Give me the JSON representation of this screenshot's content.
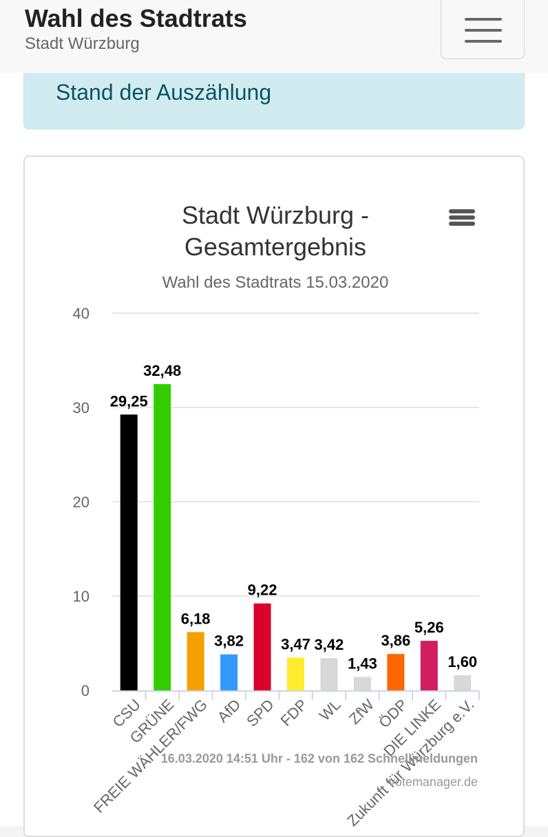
{
  "header": {
    "title": "Wahl des Stadtrats",
    "subtitle": "Stadt Würzburg",
    "menu_icon": "hamburger-icon"
  },
  "alert": {
    "text": "Stand der Auszählung"
  },
  "chart_menu_icon": "hamburger-icon",
  "chart_data": {
    "type": "bar",
    "title_lines": [
      "Stadt Würzburg -",
      "Gesamtergebnis"
    ],
    "subtitle": "Wahl des Stadtrats 15.03.2020",
    "categories": [
      "CSU",
      "GRÜNE",
      "FREIE WÄHLER/FWG",
      "AfD",
      "SPD",
      "FDP",
      "WL",
      "ZfW",
      "ÖDP",
      "DIE LINKE",
      "Zukunft für Würzburg e.V."
    ],
    "values": [
      29.25,
      32.48,
      6.18,
      3.82,
      9.22,
      3.47,
      3.42,
      1.43,
      3.86,
      5.26,
      1.6
    ],
    "value_labels": [
      "29,25",
      "32,48",
      "6,18",
      "3,82",
      "9,22",
      "3,47",
      "3,42",
      "1,43",
      "3,86",
      "5,26",
      "1,60"
    ],
    "colors": [
      "#000000",
      "#33cc00",
      "#f5a000",
      "#3399ff",
      "#d90029",
      "#ffec2e",
      "#d8d8d8",
      "#d8d8d8",
      "#ff6600",
      "#d11e5e",
      "#d8d8d8"
    ],
    "ylim": [
      0,
      40
    ],
    "yticks": [
      0,
      10,
      20,
      30,
      40
    ],
    "grid": true,
    "legend": "none",
    "footer": "16.03.2020 14:51 Uhr - 162 von 162 Schnellmeldungen",
    "credit": "votemanager.de"
  }
}
